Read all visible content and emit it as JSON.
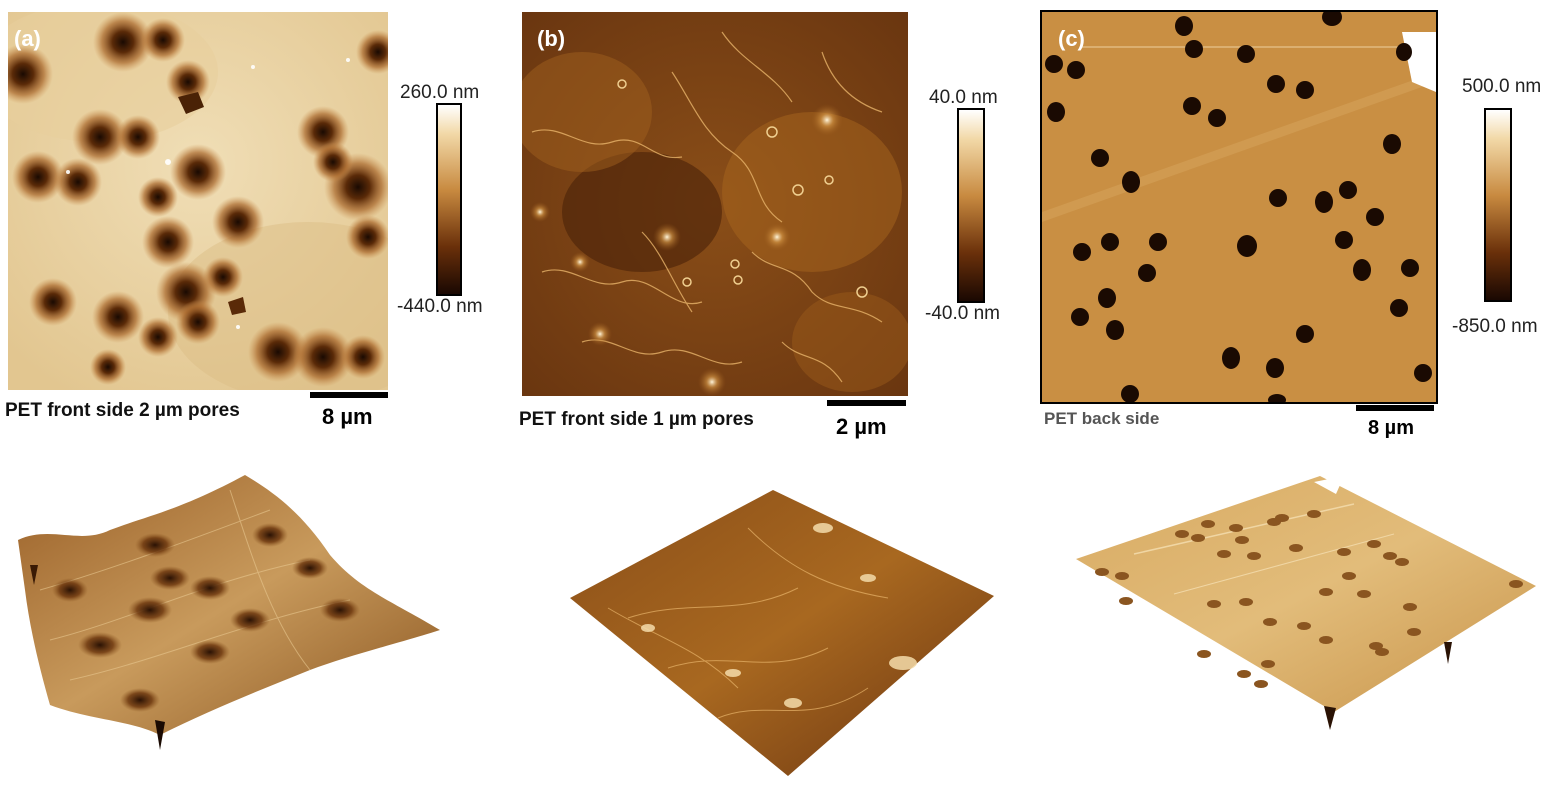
{
  "panels": [
    {
      "letter": "(a)",
      "caption": "PET front side 2 µm pores",
      "scale_label": "8 µm",
      "colorbar": {
        "max_label": "260.0 nm",
        "min_label": "-440.0 nm"
      }
    },
    {
      "letter": "(b)",
      "caption": "PET front side 1 µm pores",
      "scale_label": "2 µm",
      "colorbar": {
        "max_label": "40.0 nm",
        "min_label": "-40.0 nm"
      }
    },
    {
      "letter": "(c)",
      "caption": "PET back side",
      "scale_label": "8 µm",
      "colorbar": {
        "max_label": "500.0 nm",
        "min_label": "-850.0 nm"
      }
    }
  ],
  "colors": {
    "afm_light": "#f2e6c8",
    "afm_mid": "#b87a2c",
    "afm_dark": "#2a1303",
    "afm_c_surface": "#c89042"
  }
}
